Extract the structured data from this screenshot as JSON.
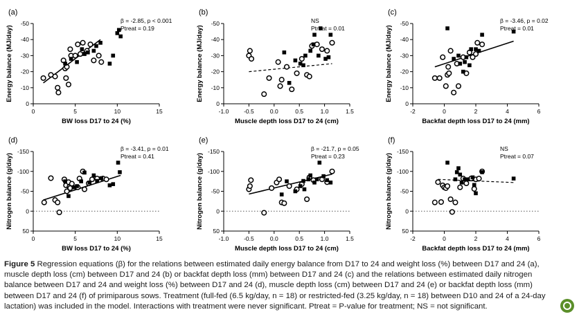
{
  "figure_caption": {
    "label": "Figure 5",
    "text": "Regression equations (β) for the relations between estimated daily energy balance from D17 to 24 and weight loss (%) between D17 and 24 (a), muscle depth loss (cm) between D17 and 24 (b) or backfat depth loss (mm) between D17 and 24 (c) and the relations between estimated daily nitrogen balance between D17 and 24 and weight loss (%) between D17 and 24 (d), muscle depth loss (cm) between D17 and 24 (e) or backfat depth loss (mm) between D17 and 24 (f) of primiparous sows. Treatment (full-fed (6.5 kg/day, n = 18) or restricted-fed (3.25 kg/day, n = 18) between D10 and 24 of a 24-day lactation) was included in the model. Interactions with treatment were never significant. Ptreat = P-value for treatment; NS = not significant."
  },
  "colors": {
    "line": "#000000",
    "background": "#ffffff",
    "badge": "#5b8f2a"
  },
  "chart_data": [
    {
      "panel": "(a)",
      "type": "scatter",
      "xlabel": "BW loss D17 to 24 (%)",
      "ylabel": "Energy balance (MJ/day)",
      "xlim": [
        0,
        15
      ],
      "ylim": [
        0,
        -50
      ],
      "xticks": [
        "0",
        "5",
        "10",
        "15"
      ],
      "yticks": [
        "0",
        "-10",
        "-20",
        "-30",
        "-40",
        "-50"
      ],
      "annotation": [
        "β = -2.85, p < 0.001",
        "Ptreat = 0.19"
      ],
      "regression": {
        "style": "solid",
        "x": [
          1.2,
          8.0
        ],
        "y": [
          -13,
          -40
        ]
      },
      "series": [
        {
          "marker": "open-circle",
          "points": [
            [
              1.2,
              -16
            ],
            [
              2.1,
              -18
            ],
            [
              2.6,
              -17
            ],
            [
              2.9,
              -10
            ],
            [
              3.0,
              -7
            ],
            [
              3.6,
              -27
            ],
            [
              3.8,
              -22
            ],
            [
              3.9,
              -16
            ],
            [
              4.0,
              -23
            ],
            [
              4.2,
              -12
            ],
            [
              4.4,
              -34
            ],
            [
              4.5,
              -30
            ],
            [
              5.0,
              -30
            ],
            [
              5.3,
              -37
            ],
            [
              5.6,
              -31
            ],
            [
              5.9,
              -38
            ],
            [
              6.4,
              -33
            ],
            [
              6.8,
              -37
            ],
            [
              7.2,
              -27
            ],
            [
              7.8,
              -30
            ],
            [
              8.1,
              -26
            ]
          ]
        },
        {
          "marker": "filled-square",
          "points": [
            [
              3.8,
              -25
            ],
            [
              4.5,
              -28
            ],
            [
              5.2,
              -26
            ],
            [
              5.8,
              -34
            ],
            [
              6.1,
              -31
            ],
            [
              6.5,
              -32
            ],
            [
              7.2,
              -33
            ],
            [
              7.5,
              -36
            ],
            [
              8.0,
              -38
            ],
            [
              9.1,
              -25
            ],
            [
              9.5,
              -30
            ],
            [
              10.0,
              -44
            ],
            [
              10.2,
              -46
            ],
            [
              10.4,
              -42
            ]
          ]
        }
      ]
    },
    {
      "panel": "(b)",
      "type": "scatter",
      "xlabel": "Muscle depth loss D17 to 24 (cm)",
      "ylabel": "Energy balance (MJ/day)",
      "xlim": [
        -1.0,
        1.5
      ],
      "ylim": [
        0,
        -50
      ],
      "xticks": [
        "-1.0",
        "-0.5",
        "0.0",
        "0.5",
        "1.0",
        "1.5"
      ],
      "yticks": [
        "0",
        "-10",
        "-20",
        "-30",
        "-40",
        "-50"
      ],
      "annotation": [
        "NS",
        "Ptreat = 0.01"
      ],
      "regression": {
        "style": "dashed",
        "x": [
          -0.5,
          1.15
        ],
        "y": [
          -20,
          -25
        ]
      },
      "series": [
        {
          "marker": "open-circle",
          "points": [
            [
              -0.5,
              -30
            ],
            [
              -0.48,
              -33
            ],
            [
              -0.45,
              -28
            ],
            [
              -0.2,
              -6
            ],
            [
              -0.1,
              -16
            ],
            [
              0.08,
              -26
            ],
            [
              0.12,
              -11
            ],
            [
              0.15,
              -15
            ],
            [
              0.25,
              -23
            ],
            [
              0.35,
              -9
            ],
            [
              0.45,
              -19
            ],
            [
              0.55,
              -28
            ],
            [
              0.65,
              -18
            ],
            [
              0.7,
              -17
            ],
            [
              0.75,
              -36
            ],
            [
              0.85,
              -37
            ],
            [
              0.95,
              -34
            ],
            [
              1.05,
              -33
            ],
            [
              1.15,
              -38
            ]
          ]
        },
        {
          "marker": "filled-square",
          "points": [
            [
              0.2,
              -32
            ],
            [
              0.3,
              -13
            ],
            [
              0.42,
              -27
            ],
            [
              0.52,
              -25
            ],
            [
              0.58,
              -24
            ],
            [
              0.62,
              -30
            ],
            [
              0.72,
              -33
            ],
            [
              0.78,
              -37
            ],
            [
              0.8,
              -43
            ],
            [
              0.88,
              -30
            ],
            [
              0.92,
              -47
            ],
            [
              1.02,
              -28
            ],
            [
              1.08,
              -29
            ],
            [
              1.12,
              -43
            ]
          ]
        }
      ]
    },
    {
      "panel": "(c)",
      "type": "scatter",
      "xlabel": "Backfat depth loss D17 to 24 (mm)",
      "ylabel": "Energy balance (MJ/day)",
      "xlim": [
        -2,
        6
      ],
      "ylim": [
        0,
        -50
      ],
      "xticks": [
        "-2",
        "0",
        "2",
        "4",
        "6"
      ],
      "yticks": [
        "0",
        "-10",
        "-20",
        "-30",
        "-40",
        "-50"
      ],
      "annotation": [
        "β = -3.46, p = 0.02",
        "Ptreat = 0.01"
      ],
      "regression": {
        "style": "solid",
        "x": [
          -0.6,
          4.4
        ],
        "y": [
          -23,
          -39
        ]
      },
      "series": [
        {
          "marker": "open-circle",
          "points": [
            [
              -0.6,
              -16
            ],
            [
              -0.3,
              -16
            ],
            [
              -0.1,
              -29
            ],
            [
              0.1,
              -11
            ],
            [
              0.2,
              -18
            ],
            [
              0.25,
              -23
            ],
            [
              0.3,
              -19
            ],
            [
              0.4,
              -33
            ],
            [
              0.6,
              -7
            ],
            [
              0.8,
              -25
            ],
            [
              0.9,
              -11
            ],
            [
              1.2,
              -29
            ],
            [
              1.4,
              -19
            ],
            [
              1.6,
              -32
            ],
            [
              1.8,
              -29
            ],
            [
              2.0,
              -31
            ],
            [
              2.1,
              -38
            ],
            [
              2.4,
              -37
            ]
          ]
        },
        {
          "marker": "filled-square",
          "points": [
            [
              0.2,
              -47
            ],
            [
              0.6,
              -28
            ],
            [
              0.9,
              -30
            ],
            [
              1.0,
              -25
            ],
            [
              1.2,
              -20
            ],
            [
              1.3,
              -26
            ],
            [
              1.4,
              -29
            ],
            [
              1.6,
              -24
            ],
            [
              1.7,
              -34
            ],
            [
              2.0,
              -34
            ],
            [
              2.2,
              -33
            ],
            [
              2.4,
              -43
            ],
            [
              4.4,
              -45
            ]
          ]
        }
      ]
    },
    {
      "panel": "(d)",
      "type": "scatter",
      "xlabel": "BW loss D17 to 24 (%)",
      "ylabel": "Nitrogen balance (g/day)",
      "xlim": [
        0,
        15
      ],
      "ylim": [
        50,
        -150
      ],
      "xticks": [
        "0",
        "5",
        "10",
        "15"
      ],
      "yticks": [
        "50",
        "0",
        "-50",
        "-100",
        "-150"
      ],
      "annotation": [
        "β = -3.41, p = 0.01",
        "Ptreat = 0.41"
      ],
      "regression": {
        "style": "solid",
        "x": [
          1.2,
          10.4
        ],
        "y": [
          -28,
          -90
        ]
      },
      "series": [
        {
          "marker": "open-circle",
          "points": [
            [
              1.3,
              -22
            ],
            [
              2.1,
              -83
            ],
            [
              2.6,
              -28
            ],
            [
              2.9,
              -22
            ],
            [
              3.1,
              3
            ],
            [
              3.7,
              -80
            ],
            [
              3.9,
              -65
            ],
            [
              4.0,
              -50
            ],
            [
              4.2,
              -73
            ],
            [
              4.3,
              -61
            ],
            [
              4.4,
              -58
            ],
            [
              4.6,
              -69
            ],
            [
              5.3,
              -60
            ],
            [
              5.5,
              -82
            ],
            [
              5.9,
              -100
            ],
            [
              6.1,
              -55
            ],
            [
              6.6,
              -70
            ],
            [
              7.0,
              -80
            ],
            [
              7.6,
              -82
            ],
            [
              8.3,
              -82
            ],
            [
              8.7,
              -80
            ]
          ]
        },
        {
          "marker": "filled-square",
          "points": [
            [
              3.8,
              -75
            ],
            [
              4.2,
              -38
            ],
            [
              4.8,
              -60
            ],
            [
              5.2,
              -63
            ],
            [
              5.7,
              -75
            ],
            [
              6.1,
              -97
            ],
            [
              6.7,
              -72
            ],
            [
              7.2,
              -90
            ],
            [
              7.6,
              -76
            ],
            [
              8.1,
              -83
            ],
            [
              9.1,
              -65
            ],
            [
              9.5,
              -68
            ],
            [
              10.1,
              -122
            ],
            [
              10.3,
              -98
            ]
          ]
        }
      ]
    },
    {
      "panel": "(e)",
      "type": "scatter",
      "xlabel": "Muscle depth loss D17 to 24 (cm)",
      "ylabel": "Nitrogen balance (g/day)",
      "xlim": [
        -1.0,
        1.5
      ],
      "ylim": [
        50,
        -150
      ],
      "xticks": [
        "-1.0",
        "-0.5",
        "0.0",
        "0.5",
        "1.0",
        "1.5"
      ],
      "yticks": [
        "50",
        "0",
        "-50",
        "-100",
        "-150"
      ],
      "annotation": [
        "β = -21.7, p = 0.05",
        "Ptreat = 0.23"
      ],
      "regression": {
        "style": "solid",
        "x": [
          -0.5,
          1.15
        ],
        "y": [
          -43,
          -93
        ]
      },
      "series": [
        {
          "marker": "open-circle",
          "points": [
            [
              -0.5,
              -55
            ],
            [
              -0.48,
              -63
            ],
            [
              -0.46,
              -78
            ],
            [
              -0.2,
              4
            ],
            [
              -0.05,
              -58
            ],
            [
              0.05,
              -72
            ],
            [
              0.1,
              -80
            ],
            [
              0.15,
              -22
            ],
            [
              0.2,
              -20
            ],
            [
              0.3,
              -63
            ],
            [
              0.45,
              -55
            ],
            [
              0.55,
              -68
            ],
            [
              0.65,
              -30
            ],
            [
              0.7,
              -85
            ],
            [
              0.78,
              -78
            ],
            [
              0.95,
              -80
            ],
            [
              1.05,
              -73
            ],
            [
              1.15,
              -100
            ]
          ]
        },
        {
          "marker": "filled-square",
          "points": [
            [
              0.15,
              -42
            ],
            [
              0.25,
              -75
            ],
            [
              0.42,
              -50
            ],
            [
              0.52,
              -63
            ],
            [
              0.58,
              -76
            ],
            [
              0.6,
              -55
            ],
            [
              0.68,
              -80
            ],
            [
              0.72,
              -90
            ],
            [
              0.8,
              -72
            ],
            [
              0.85,
              -80
            ],
            [
              0.9,
              -122
            ],
            [
              0.98,
              -88
            ],
            [
              1.05,
              -78
            ],
            [
              1.12,
              -72
            ]
          ]
        }
      ]
    },
    {
      "panel": "(f)",
      "type": "scatter",
      "xlabel": "Backfat depth loss D17 to 24 (mm)",
      "ylabel": "Nitrogen balance (g/day)",
      "xlim": [
        -2,
        6
      ],
      "ylim": [
        50,
        -150
      ],
      "xticks": [
        "-2",
        "0",
        "2",
        "4",
        "6"
      ],
      "yticks": [
        "50",
        "0",
        "-50",
        "-100",
        "-150"
      ],
      "annotation": [
        "NS",
        "Ptreat = 0.07"
      ],
      "regression": {
        "style": "dashed",
        "x": [
          -0.4,
          4.4
        ],
        "y": [
          -80,
          -72
        ]
      },
      "series": [
        {
          "marker": "open-circle",
          "points": [
            [
              -0.6,
              -22
            ],
            [
              -0.4,
              -73
            ],
            [
              -0.2,
              -23
            ],
            [
              -0.1,
              -65
            ],
            [
              0.0,
              -60
            ],
            [
              0.1,
              -58
            ],
            [
              0.2,
              -63
            ],
            [
              0.4,
              -30
            ],
            [
              0.5,
              2
            ],
            [
              0.7,
              -22
            ],
            [
              1.0,
              -60
            ],
            [
              1.2,
              -82
            ],
            [
              1.4,
              -70
            ],
            [
              1.7,
              -82
            ],
            [
              1.9,
              -56
            ],
            [
              2.0,
              -80
            ],
            [
              2.2,
              -82
            ],
            [
              2.4,
              -100
            ]
          ]
        },
        {
          "marker": "filled-square",
          "points": [
            [
              0.2,
              -122
            ],
            [
              0.7,
              -80
            ],
            [
              0.8,
              -98
            ],
            [
              0.9,
              -108
            ],
            [
              1.0,
              -92
            ],
            [
              1.1,
              -72
            ],
            [
              1.3,
              -80
            ],
            [
              1.5,
              -80
            ],
            [
              1.8,
              -85
            ],
            [
              1.9,
              -66
            ],
            [
              2.0,
              -45
            ],
            [
              2.4,
              -98
            ],
            [
              4.4,
              -82
            ]
          ]
        }
      ]
    }
  ]
}
